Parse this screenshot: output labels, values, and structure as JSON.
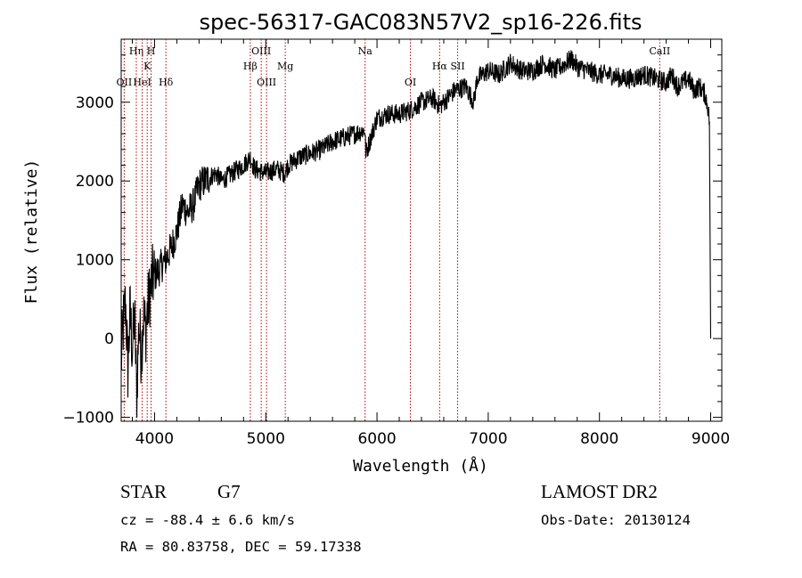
{
  "chart_data": {
    "type": "line",
    "title": "spec-56317-GAC083N57V2_sp16-226.fits",
    "xlabel": "Wavelength (Å)",
    "ylabel": "Flux (relative)",
    "xlim": [
      3700,
      9100
    ],
    "ylim": [
      -1050,
      3800
    ],
    "x_ticks": [
      4000,
      5000,
      6000,
      7000,
      8000,
      9000
    ],
    "y_ticks": [
      -1000,
      0,
      1000,
      2000,
      3000
    ],
    "series": [
      {
        "x": [
          3700,
          3720,
          3740,
          3760,
          3780,
          3800,
          3820,
          3840,
          3860,
          3880,
          3900,
          3920,
          3940,
          3960,
          3980,
          4000,
          4050,
          4100,
          4150,
          4200,
          4250,
          4300,
          4350,
          4400,
          4450,
          4500,
          4550,
          4600,
          4700,
          4800,
          4860,
          4900,
          5000,
          5100,
          5170,
          5200,
          5300,
          5400,
          5500,
          5600,
          5700,
          5800,
          5890,
          5900,
          6000,
          6100,
          6200,
          6300,
          6400,
          6500,
          6563,
          6600,
          6700,
          6800,
          6870,
          6900,
          7000,
          7100,
          7200,
          7300,
          7400,
          7500,
          7600,
          7700,
          7750,
          7800,
          7900,
          8000,
          8100,
          8200,
          8300,
          8400,
          8500,
          8600,
          8650,
          8700,
          8800,
          8850,
          8900,
          8950,
          8980,
          8990,
          9000
        ],
        "y": [
          -300,
          200,
          450,
          -400,
          350,
          -150,
          300,
          -700,
          200,
          -200,
          300,
          100,
          400,
          600,
          750,
          800,
          900,
          1000,
          1150,
          1350,
          1700,
          1600,
          1700,
          1950,
          2000,
          2050,
          2100,
          2000,
          2100,
          2200,
          2300,
          2150,
          2100,
          2150,
          2100,
          2200,
          2300,
          2350,
          2400,
          2500,
          2550,
          2600,
          2650,
          2350,
          2800,
          2850,
          2850,
          2900,
          3000,
          3050,
          2950,
          3000,
          3150,
          3200,
          3000,
          3300,
          3400,
          3350,
          3500,
          3400,
          3400,
          3500,
          3400,
          3500,
          3550,
          3450,
          3400,
          3350,
          3350,
          3300,
          3300,
          3350,
          3300,
          3250,
          3350,
          3200,
          3300,
          3150,
          3200,
          3100,
          2900,
          2700,
          0
        ]
      }
    ],
    "spectral_lines": [
      {
        "label": "OII",
        "x": 3727,
        "row": 3
      },
      {
        "label": "Hη",
        "x": 3836,
        "row": 1
      },
      {
        "label": "HeI",
        "x": 3889,
        "row": 3
      },
      {
        "label": "K",
        "x": 3934,
        "row": 2
      },
      {
        "label": "H",
        "x": 3969,
        "row": 1
      },
      {
        "label": "Hδ",
        "x": 4102,
        "row": 3
      },
      {
        "label": "Hβ",
        "x": 4861,
        "row": 2
      },
      {
        "label": "OIII",
        "x": 4959,
        "row": 1
      },
      {
        "label": "OIII",
        "x": 5007,
        "row": 3
      },
      {
        "label": "Mg",
        "x": 5175,
        "row": 2
      },
      {
        "label": "Na",
        "x": 5893,
        "row": 1
      },
      {
        "label": "OI",
        "x": 6300,
        "row": 3
      },
      {
        "label": "Hα",
        "x": 6563,
        "row": 2
      },
      {
        "label": "SII",
        "x": 6725,
        "row": 2
      },
      {
        "label": "CaII",
        "x": 8542,
        "row": 1
      }
    ],
    "grid": false,
    "legend": "none"
  },
  "info": {
    "object_type": "STAR",
    "subclass": "G7",
    "survey": "LAMOST DR2",
    "cz": "cz = -88.4 ± 6.6 km/s",
    "obs_date": "Obs-Date: 20130124",
    "coords": "RA =  80.83758, DEC =  59.17338"
  }
}
